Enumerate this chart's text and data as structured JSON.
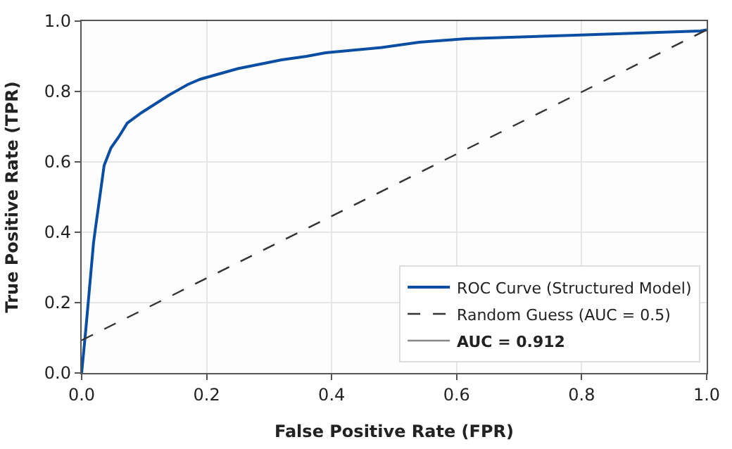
{
  "chart_data": {
    "type": "line",
    "xlabel": "False Positive Rate (FPR)",
    "ylabel": "True Positive Rate (TPR)",
    "xlim": [
      0,
      1
    ],
    "ylim": [
      0,
      1
    ],
    "xticks": [
      {
        "value": 0,
        "label": "0.0"
      },
      0.2,
      0.4,
      0.6,
      0.8,
      {
        "value": 1,
        "label": "1.0"
      }
    ],
    "yticks": [
      {
        "value": 0,
        "label": "0.0"
      },
      0.2,
      0.4,
      0.6,
      0.8,
      {
        "value": 1,
        "label": "1.0"
      }
    ],
    "grid": true,
    "legend": "bottom right",
    "marker": "none",
    "series": [
      {
        "name": "ROC Curve (Structured Model)",
        "color": "#0a4ea3",
        "line_style": "solid",
        "x": [
          0,
          0.007,
          0.019,
          0.022,
          0.029,
          0.036,
          0.047,
          0.059,
          0.073,
          0.096,
          0.118,
          0.14,
          0.17,
          0.19,
          0.25,
          0.32,
          0.36,
          0.39,
          0.45,
          0.48,
          0.54,
          0.615,
          0.79,
          0.99,
          1
        ],
        "values": [
          0,
          0.13,
          0.37,
          0.41,
          0.5,
          0.59,
          0.64,
          0.67,
          0.71,
          0.74,
          0.765,
          0.79,
          0.82,
          0.835,
          0.865,
          0.89,
          0.9,
          0.91,
          0.92,
          0.925,
          0.94,
          0.95,
          0.96,
          0.972,
          0.975
        ]
      },
      {
        "name": "Random Guess (AUC = 0.5)",
        "color": "#333333",
        "line_style": "dashed",
        "x": [
          0,
          1
        ],
        "values": [
          0.093,
          0.975
        ]
      }
    ],
    "annotations": [
      "AUC = 0.912"
    ]
  }
}
